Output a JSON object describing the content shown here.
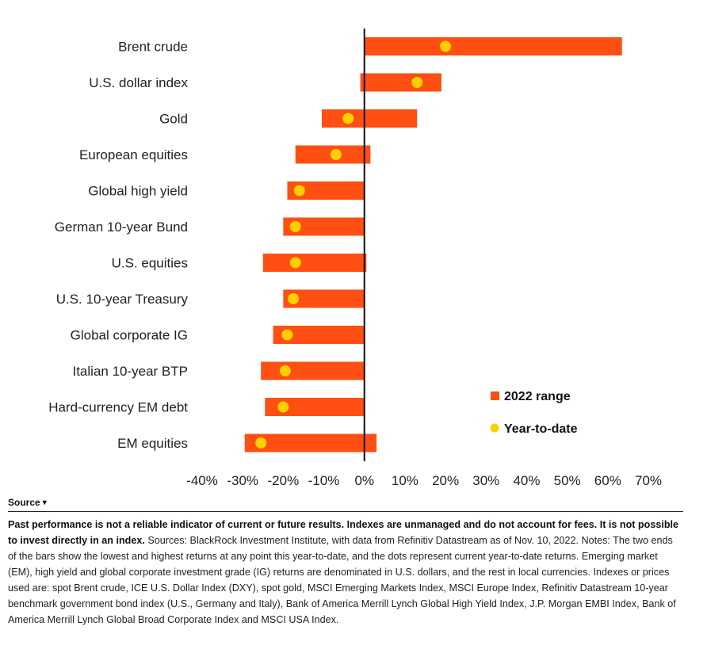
{
  "chart_data": {
    "type": "bar",
    "subtype": "range-with-dot",
    "categories": [
      "Brent crude",
      "U.S. dollar index",
      "Gold",
      "European equities",
      "Global high yield",
      "German 10-year Bund",
      "U.S. equities",
      "U.S. 10-year Treasury",
      "Global corporate IG",
      "Italian 10-year BTP",
      "Hard-currency EM debt",
      "EM equities"
    ],
    "series": [
      {
        "name": "2022 range",
        "low": [
          0,
          -1,
          -10.5,
          -17,
          -19,
          -20,
          -25,
          -20,
          -22.5,
          -25.5,
          -24.5,
          -29.5
        ],
        "high": [
          63.5,
          19,
          13,
          1.5,
          0,
          0,
          0.5,
          0,
          0,
          0,
          0,
          3
        ],
        "color": "#FF4F12"
      },
      {
        "name": "Year-to-date",
        "values": [
          20,
          13,
          -4,
          -7,
          -16,
          -17,
          -17,
          -17.5,
          -19,
          -19.5,
          -20,
          -25.5
        ],
        "color": "#FFD000"
      }
    ],
    "xlim": [
      -40,
      70
    ],
    "x_ticks": [
      "-40%",
      "-30%",
      "-20%",
      "-10%",
      "0%",
      "10%",
      "20%",
      "30%",
      "40%",
      "50%",
      "60%",
      "70%"
    ],
    "x_tick_values": [
      -40,
      -30,
      -20,
      -10,
      0,
      10,
      20,
      30,
      40,
      50,
      60,
      70
    ],
    "legend": {
      "position": "bottom-right"
    },
    "grid": false
  },
  "legend": {
    "range_label": "2022 range",
    "ytd_label": "Year-to-date"
  },
  "source": {
    "toggle_label": "Source",
    "bold_text": "Past performance is not a reliable indicator of current or future results. Indexes are unmanaged and do not account for fees. It is not possible to invest directly in an index.",
    "body_text": " Sources: BlackRock Investment Institute, with data from Refinitiv Datastream as of Nov. 10, 2022. Notes: The two ends of the bars show the lowest and highest returns at any point this year-to-date, and the dots represent current year-to-date returns. Emerging market (EM), high yield and global corporate investment grade (IG) returns are denominated in U.S. dollars, and the rest in local currencies. Indexes or prices used are: spot Brent crude, ICE U.S. Dollar Index (DXY), spot gold, MSCI Emerging Markets Index, MSCI Europe Index, Refinitiv Datastream 10-year benchmark government bond index (U.S., Germany and Italy), Bank of America Merrill Lynch Global High Yield Index, J.P. Morgan EMBI Index, Bank of America Merrill Lynch Global Broad Corporate Index and MSCI USA Index."
  }
}
